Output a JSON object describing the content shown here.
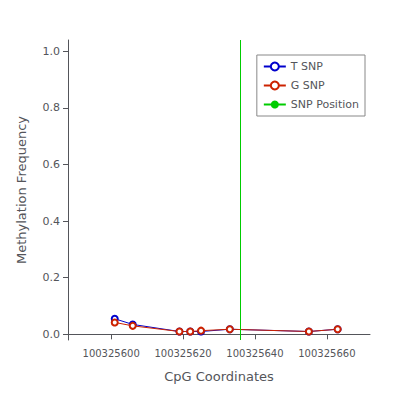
{
  "chart_data": {
    "type": "line",
    "xlabel": "CpG Coordinates",
    "ylabel": "Methylation Frequency",
    "x": [
      100325601,
      100325606,
      100325619,
      100325622,
      100325625,
      100325633,
      100325655,
      100325663
    ],
    "series": [
      {
        "name": "T SNP",
        "color": "#0000CC",
        "marker": "circle",
        "values": [
          0.055,
          0.035,
          0.01,
          0.01,
          0.01,
          0.018,
          0.01,
          0.018
        ]
      },
      {
        "name": "G SNP",
        "color": "#CC2200",
        "marker": "circle",
        "values": [
          0.042,
          0.03,
          0.01,
          0.01,
          0.013,
          0.018,
          0.01,
          0.018
        ]
      },
      {
        "name": "SNP Position",
        "type": "vline",
        "color": "#00CC00",
        "x": 100325636
      }
    ],
    "xlim": [
      100325588,
      100325672
    ],
    "ylim": [
      -0.02,
      1.04
    ],
    "xticks": [
      100325600,
      100325620,
      100325640,
      100325660
    ],
    "yticks": [
      {
        "value": 0.0,
        "label": "0.0"
      },
      0.2,
      0.4,
      0.6,
      0.8,
      {
        "value": 1.0,
        "label": "1.0"
      }
    ],
    "grid": false,
    "legend": "upper right"
  }
}
